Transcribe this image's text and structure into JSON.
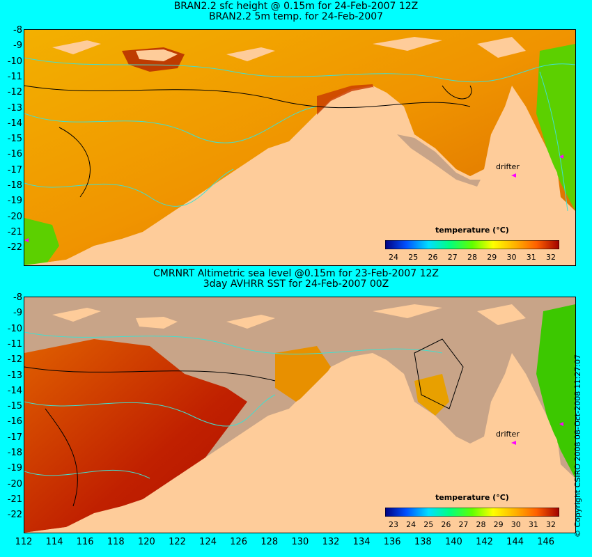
{
  "top": {
    "title1": "BRAN2.2 sfc height @ 0.15m for 24-Feb-2007 12Z",
    "title2": "BRAN2.2 5m temp. for 24-Feb-2007",
    "colorbar_title": "temperature (°C)",
    "colorbar_ticks": [
      "24",
      "25",
      "26",
      "27",
      "28",
      "29",
      "30",
      "31",
      "32"
    ],
    "drifter_label": "drifter"
  },
  "bottom": {
    "title1": "CMRNRT Altimetric sea level  @0.15m  for 23-Feb-2007 12Z",
    "title2": "3day AVHRR SST for 24-Feb-2007 00Z",
    "colorbar_title": "temperature (°C)",
    "colorbar_ticks": [
      "23",
      "24",
      "25",
      "26",
      "27",
      "28",
      "29",
      "30",
      "31",
      "32"
    ],
    "drifter_label": "drifter"
  },
  "lat_labels": [
    "-8",
    "-9",
    "-10",
    "-11",
    "-12",
    "-13",
    "-14",
    "-15",
    "-16",
    "-17",
    "-18",
    "-19",
    "-20",
    "-21",
    "-22"
  ],
  "lon_labels": [
    "112",
    "114",
    "116",
    "118",
    "120",
    "122",
    "124",
    "126",
    "128",
    "130",
    "132",
    "134",
    "136",
    "138",
    "140",
    "142",
    "144",
    "146"
  ],
  "copyright": "© Copyright CSIRO 2008   08-Oct-2008 11:27:07",
  "colors": {
    "background": "#00ffff",
    "land": "#fecc9a",
    "nodata": "#c8a488",
    "drifter": "#ff00ff"
  }
}
